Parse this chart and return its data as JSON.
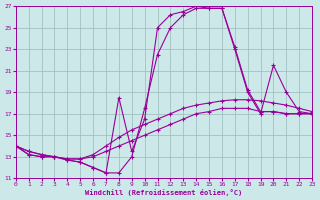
{
  "xlabel": "Windchill (Refroidissement éolien,°C)",
  "bg_color": "#cce8e8",
  "line_color": "#990099",
  "grid_color": "#99bbbb",
  "xlim": [
    0,
    23
  ],
  "ylim": [
    11,
    27
  ],
  "xticks": [
    0,
    1,
    2,
    3,
    4,
    5,
    6,
    7,
    8,
    9,
    10,
    11,
    12,
    13,
    14,
    15,
    16,
    17,
    18,
    19,
    20,
    21,
    22,
    23
  ],
  "yticks": [
    11,
    13,
    15,
    17,
    19,
    21,
    23,
    25,
    27
  ],
  "curve1_x": [
    0,
    1,
    2,
    3,
    4,
    5,
    6,
    7,
    8,
    9,
    10,
    11,
    12,
    13,
    14,
    15,
    16,
    17,
    18,
    19,
    20,
    21,
    22,
    23
  ],
  "curve1_y": [
    14.0,
    13.2,
    13.0,
    13.0,
    12.7,
    12.5,
    12.0,
    11.5,
    11.5,
    13.0,
    17.5,
    22.5,
    25.0,
    26.2,
    26.8,
    26.8,
    26.8,
    23.2,
    19.2,
    17.2,
    17.2,
    17.0,
    17.0,
    17.0
  ],
  "curve2_x": [
    0,
    1,
    2,
    3,
    4,
    5,
    6,
    7,
    8,
    9,
    10,
    11,
    12,
    13,
    14,
    15,
    16,
    17,
    18,
    19,
    20,
    21,
    22,
    23
  ],
  "curve2_y": [
    14.0,
    13.2,
    13.0,
    13.0,
    12.7,
    12.5,
    12.0,
    11.5,
    18.5,
    13.5,
    16.5,
    25.0,
    26.2,
    26.5,
    27.0,
    26.8,
    26.8,
    23.0,
    19.0,
    17.0,
    21.5,
    19.0,
    17.2,
    17.0
  ],
  "curve3_x": [
    0,
    1,
    2,
    3,
    4,
    5,
    6,
    7,
    8,
    9,
    10,
    11,
    12,
    13,
    14,
    15,
    16,
    17,
    18,
    19,
    20,
    21,
    22,
    23
  ],
  "curve3_y": [
    14.0,
    13.5,
    13.2,
    13.0,
    12.8,
    12.8,
    13.0,
    13.5,
    14.0,
    14.5,
    15.0,
    15.5,
    16.0,
    16.5,
    17.0,
    17.2,
    17.5,
    17.5,
    17.5,
    17.2,
    17.2,
    17.0,
    17.0,
    17.0
  ],
  "curve4_x": [
    0,
    1,
    2,
    3,
    4,
    5,
    6,
    7,
    8,
    9,
    10,
    11,
    12,
    13,
    14,
    15,
    16,
    17,
    18,
    19,
    20,
    21,
    22,
    23
  ],
  "curve4_y": [
    14.0,
    13.5,
    13.2,
    13.0,
    12.8,
    12.8,
    13.2,
    14.0,
    14.8,
    15.5,
    16.0,
    16.5,
    17.0,
    17.5,
    17.8,
    18.0,
    18.2,
    18.3,
    18.3,
    18.2,
    18.0,
    17.8,
    17.5,
    17.2
  ]
}
